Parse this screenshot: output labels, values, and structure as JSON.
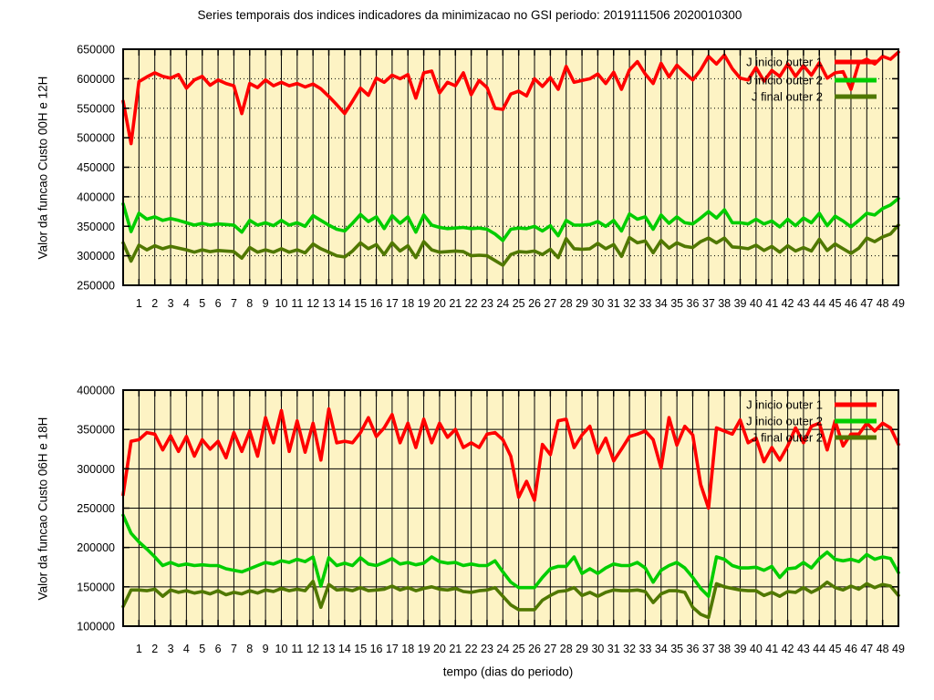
{
  "title": "Series temporais dos indices indicadores da minimizacao no GSI periodo: 2019111506 2020010300",
  "plot_bg_color": "#fdf3c4",
  "grid_color": "#000000",
  "chart_data": [
    {
      "type": "line",
      "ylabel": "Valor da funcao Custo 00H e 12H",
      "ylim": [
        250000,
        650000
      ],
      "ytick_step": 50000,
      "xlim": [
        0,
        49
      ],
      "xticks": {
        "start": 1,
        "end": 49,
        "step": 1
      },
      "x_start": 0,
      "x_step": 0.5,
      "grid": {
        "horizontal": "dotted",
        "vertical": "solid"
      },
      "legend_position": "top-right",
      "series": [
        {
          "name": "J inicio outer 1",
          "color": "#ff0000",
          "values": [
            562000,
            490000,
            595000,
            603000,
            610000,
            604000,
            601000,
            607000,
            584000,
            598000,
            604000,
            589000,
            598000,
            592000,
            588000,
            541000,
            592000,
            585000,
            598000,
            588000,
            594000,
            588000,
            592000,
            586000,
            591000,
            583000,
            570000,
            556000,
            541000,
            562000,
            584000,
            572000,
            601000,
            594000,
            606000,
            600000,
            607000,
            567000,
            610000,
            613000,
            576000,
            594000,
            588000,
            610000,
            573000,
            597000,
            585000,
            550000,
            548000,
            574000,
            579000,
            571000,
            600000,
            587000,
            602000,
            582000,
            621000,
            594000,
            597000,
            600000,
            608000,
            592000,
            611000,
            582000,
            615000,
            629000,
            608000,
            592000,
            626000,
            603000,
            623000,
            610000,
            598000,
            615000,
            638000,
            625000,
            640000,
            617000,
            601000,
            598000,
            619000,
            596000,
            614000,
            604000,
            625000,
            604000,
            622000,
            606000,
            627000,
            601000,
            610000,
            612000,
            582000,
            627000,
            633000,
            625000,
            638000,
            633000,
            645000
          ]
        },
        {
          "name": "J inicio outer 2",
          "color": "#00cd00",
          "values": [
            388000,
            341000,
            372000,
            362000,
            366000,
            360000,
            363000,
            360000,
            356000,
            352000,
            355000,
            352000,
            354000,
            353000,
            352000,
            340000,
            360000,
            352000,
            356000,
            351000,
            360000,
            352000,
            356000,
            350000,
            368000,
            360000,
            352000,
            345000,
            342000,
            355000,
            370000,
            358000,
            366000,
            346000,
            368000,
            355000,
            366000,
            340000,
            369000,
            352000,
            348000,
            346000,
            347000,
            348000,
            346000,
            347000,
            345000,
            337000,
            326000,
            345000,
            347000,
            346000,
            350000,
            342000,
            351000,
            334000,
            360000,
            352000,
            352000,
            353000,
            358000,
            350000,
            360000,
            342000,
            371000,
            362000,
            366000,
            345000,
            369000,
            355000,
            366000,
            356000,
            354000,
            364000,
            375000,
            364000,
            378000,
            356000,
            356000,
            354000,
            362000,
            354000,
            359000,
            349000,
            362000,
            351000,
            364000,
            356000,
            372000,
            351000,
            367000,
            359000,
            349000,
            360000,
            372000,
            369000,
            380000,
            386000,
            397000
          ]
        },
        {
          "name": "J  final outer 2",
          "color": "#507800",
          "values": [
            322000,
            291000,
            318000,
            310000,
            317000,
            312000,
            316000,
            313000,
            310000,
            306000,
            310000,
            307000,
            309000,
            308000,
            307000,
            296000,
            314000,
            306000,
            310000,
            306000,
            312000,
            306000,
            310000,
            305000,
            320000,
            312000,
            306000,
            300000,
            298000,
            308000,
            322000,
            312000,
            319000,
            302000,
            322000,
            308000,
            317000,
            297000,
            324000,
            310000,
            306000,
            307000,
            308000,
            307000,
            300000,
            301000,
            300000,
            292000,
            284000,
            302000,
            307000,
            306000,
            308000,
            302000,
            311000,
            297000,
            329000,
            312000,
            311000,
            312000,
            321000,
            312000,
            319000,
            299000,
            331000,
            322000,
            325000,
            305000,
            326000,
            313000,
            322000,
            316000,
            314000,
            324000,
            330000,
            322000,
            330000,
            315000,
            314000,
            312000,
            318000,
            309000,
            316000,
            306000,
            317000,
            308000,
            314000,
            308000,
            328000,
            309000,
            320000,
            312000,
            304000,
            313000,
            330000,
            324000,
            332000,
            337000,
            352000
          ]
        }
      ]
    },
    {
      "type": "line",
      "ylabel": "Valor da funcao Custo 06H e 18H",
      "xlabel": "tempo (dias do periodo)",
      "ylim": [
        100000,
        400000
      ],
      "ytick_step": 50000,
      "xlim": [
        0,
        49
      ],
      "xticks": {
        "start": 1,
        "end": 49,
        "step": 1
      },
      "x_start": 0,
      "x_step": 0.5,
      "grid": {
        "horizontal": "solid",
        "vertical": "solid"
      },
      "legend_position": "top-right",
      "series": [
        {
          "name": "J inicio outer 1",
          "color": "#ff0000",
          "values": [
            267000,
            335000,
            337000,
            346000,
            344000,
            324000,
            342000,
            322000,
            341000,
            316000,
            337000,
            325000,
            335000,
            314000,
            346000,
            322000,
            348000,
            316000,
            365000,
            333000,
            374000,
            322000,
            361000,
            321000,
            358000,
            311000,
            376000,
            333000,
            335000,
            333000,
            346000,
            365000,
            341000,
            352000,
            369000,
            333000,
            358000,
            327000,
            363000,
            333000,
            358000,
            340000,
            350000,
            327000,
            333000,
            327000,
            344000,
            346000,
            337000,
            316000,
            264000,
            284000,
            260000,
            331000,
            318000,
            361000,
            363000,
            327000,
            343000,
            354000,
            320000,
            339000,
            310000,
            325000,
            341000,
            344000,
            348000,
            337000,
            301000,
            365000,
            330000,
            354000,
            343000,
            280000,
            250000,
            352000,
            348000,
            344000,
            362000,
            333000,
            339000,
            309000,
            327000,
            311000,
            329000,
            352000,
            333000,
            354000,
            358000,
            324000,
            361000,
            329000,
            344000,
            344000,
            358000,
            348000,
            358000,
            352000,
            331000
          ]
        },
        {
          "name": "J inicio outer 2",
          "color": "#00cd00",
          "values": [
            241000,
            218000,
            207000,
            198000,
            188000,
            177000,
            181000,
            177000,
            179000,
            177000,
            178000,
            177000,
            177000,
            173000,
            171000,
            169000,
            173000,
            177000,
            181000,
            179000,
            183000,
            181000,
            185000,
            182000,
            188000,
            151000,
            187000,
            177000,
            180000,
            177000,
            187000,
            179000,
            177000,
            181000,
            186000,
            179000,
            181000,
            178000,
            180000,
            188000,
            182000,
            180000,
            181000,
            177000,
            179000,
            177000,
            177000,
            183000,
            169000,
            156000,
            149000,
            149000,
            149000,
            162000,
            173000,
            176000,
            176000,
            188000,
            167000,
            173000,
            167000,
            174000,
            179000,
            177000,
            177000,
            181000,
            174000,
            156000,
            171000,
            177000,
            181000,
            174000,
            162000,
            148000,
            138000,
            188000,
            185000,
            177000,
            174000,
            174000,
            175000,
            171000,
            176000,
            162000,
            173000,
            174000,
            181000,
            174000,
            186000,
            194000,
            185000,
            183000,
            185000,
            182000,
            191000,
            185000,
            188000,
            186000,
            168000
          ]
        },
        {
          "name": "J final  outer 2",
          "color": "#507800",
          "values": [
            125000,
            146000,
            146000,
            145000,
            147000,
            138000,
            146000,
            143000,
            145000,
            142000,
            144000,
            141000,
            145000,
            140000,
            143000,
            141000,
            145000,
            142000,
            146000,
            144000,
            148000,
            145000,
            147000,
            145000,
            157000,
            124000,
            153000,
            146000,
            147000,
            145000,
            149000,
            145000,
            146000,
            147000,
            151000,
            146000,
            149000,
            145000,
            148000,
            150000,
            147000,
            146000,
            148000,
            144000,
            143000,
            145000,
            146000,
            149000,
            138000,
            127000,
            121000,
            121000,
            121000,
            133000,
            139000,
            144000,
            145000,
            149000,
            139000,
            143000,
            138000,
            143000,
            146000,
            145000,
            145000,
            146000,
            144000,
            130000,
            141000,
            145000,
            145000,
            143000,
            124000,
            115000,
            111000,
            154000,
            150000,
            148000,
            146000,
            145000,
            145000,
            139000,
            143000,
            138000,
            144000,
            143000,
            149000,
            143000,
            148000,
            156000,
            149000,
            146000,
            151000,
            147000,
            154000,
            149000,
            153000,
            151000,
            139000
          ]
        }
      ]
    }
  ]
}
